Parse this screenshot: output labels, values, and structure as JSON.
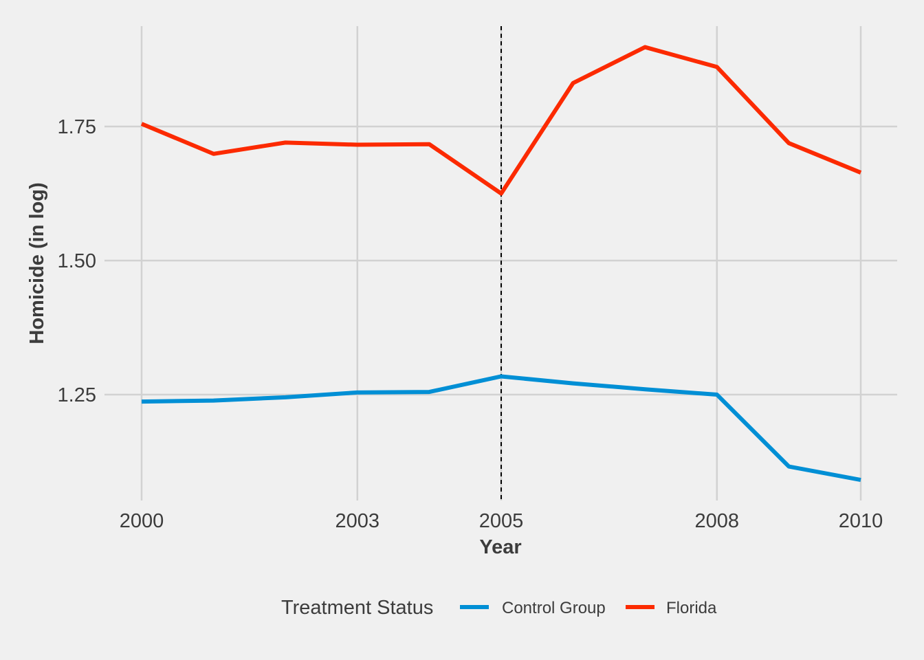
{
  "chart_data": {
    "type": "line",
    "title": "",
    "xlabel": "Year",
    "ylabel": "Homicide (in log)",
    "x": [
      2000,
      2001,
      2002,
      2003,
      2004,
      2005,
      2006,
      2007,
      2008,
      2009,
      2010
    ],
    "x_ticks": [
      2000,
      2003,
      2005,
      2008,
      2010
    ],
    "y_ticks": [
      1.25,
      1.5,
      1.75
    ],
    "y_tick_labels": [
      "1.25",
      "1.50",
      "1.75"
    ],
    "xlim": [
      2000,
      2010
    ],
    "ylim": [
      1.09,
      1.9
    ],
    "grid": true,
    "vline": {
      "x": 2005,
      "style": "dashed",
      "color": "#000000"
    },
    "legend": {
      "title": "Treatment Status",
      "position": "bottom"
    },
    "series": [
      {
        "name": "Control Group",
        "color": "#008fd5",
        "values": [
          1.237,
          1.239,
          1.245,
          1.254,
          1.255,
          1.284,
          1.271,
          1.26,
          1.25,
          1.116,
          1.091
        ]
      },
      {
        "name": "Florida",
        "color": "#fc2a00",
        "values": [
          1.755,
          1.699,
          1.72,
          1.716,
          1.717,
          1.625,
          1.831,
          1.898,
          1.861,
          1.719,
          1.664
        ]
      }
    ]
  }
}
